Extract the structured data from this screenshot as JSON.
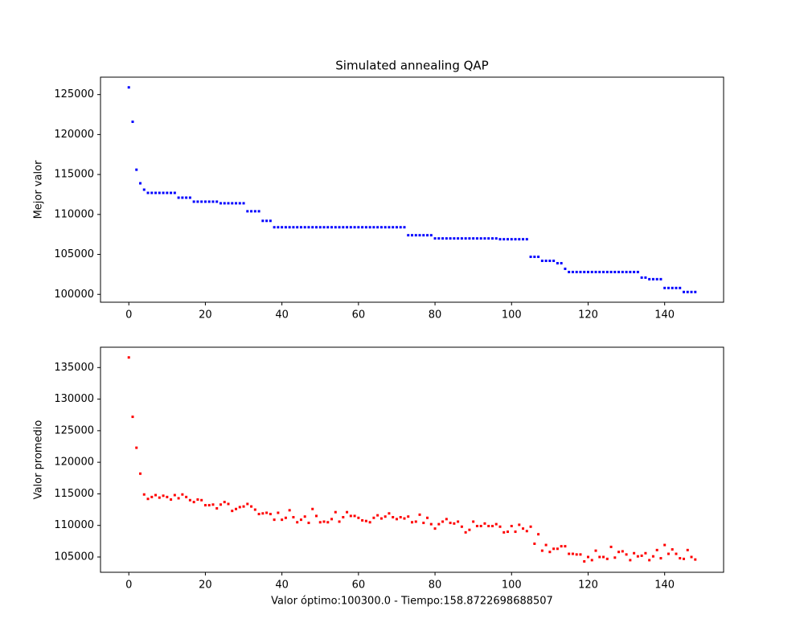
{
  "chart_data": [
    {
      "type": "scatter",
      "title": "Simulated annealing QAP",
      "ylabel": "Mejor valor",
      "color": "#0000ff",
      "x": [
        0,
        1,
        2,
        3,
        4,
        5,
        6,
        7,
        8,
        9,
        10,
        11,
        12,
        13,
        14,
        15,
        16,
        17,
        18,
        19,
        20,
        21,
        22,
        23,
        24,
        25,
        26,
        27,
        28,
        29,
        30,
        31,
        32,
        33,
        34,
        35,
        36,
        37,
        38,
        39,
        40,
        41,
        42,
        43,
        44,
        45,
        46,
        47,
        48,
        49,
        50,
        51,
        52,
        53,
        54,
        55,
        56,
        57,
        58,
        59,
        60,
        61,
        62,
        63,
        64,
        65,
        66,
        67,
        68,
        69,
        70,
        71,
        72,
        73,
        74,
        75,
        76,
        77,
        78,
        79,
        80,
        81,
        82,
        83,
        84,
        85,
        86,
        87,
        88,
        89,
        90,
        91,
        92,
        93,
        94,
        95,
        96,
        97,
        98,
        99,
        100,
        101,
        102,
        103,
        104,
        105,
        106,
        107,
        108,
        109,
        110,
        111,
        112,
        113,
        114,
        115,
        116,
        117,
        118,
        119,
        120,
        121,
        122,
        123,
        124,
        125,
        126,
        127,
        128,
        129,
        130,
        131,
        132,
        133,
        134,
        135,
        136,
        137,
        138,
        139,
        140,
        141,
        142,
        143,
        144,
        145,
        146,
        147,
        148
      ],
      "values": [
        125900,
        121600,
        115600,
        113900,
        113100,
        112700,
        112700,
        112700,
        112700,
        112700,
        112700,
        112700,
        112700,
        112100,
        112100,
        112100,
        112100,
        111600,
        111600,
        111600,
        111600,
        111600,
        111600,
        111600,
        111400,
        111400,
        111400,
        111400,
        111400,
        111400,
        111400,
        110400,
        110400,
        110400,
        110400,
        109200,
        109200,
        109200,
        108400,
        108400,
        108400,
        108400,
        108400,
        108400,
        108400,
        108400,
        108400,
        108400,
        108400,
        108400,
        108400,
        108400,
        108400,
        108400,
        108400,
        108400,
        108400,
        108400,
        108400,
        108400,
        108400,
        108400,
        108400,
        108400,
        108400,
        108400,
        108400,
        108400,
        108400,
        108400,
        108400,
        108400,
        108400,
        107400,
        107400,
        107400,
        107400,
        107400,
        107400,
        107400,
        107000,
        107000,
        107000,
        107000,
        107000,
        107000,
        107000,
        107000,
        107000,
        107000,
        107000,
        107000,
        107000,
        107000,
        107000,
        107000,
        107000,
        106900,
        106900,
        106900,
        106900,
        106900,
        106900,
        106900,
        106900,
        104700,
        104700,
        104700,
        104200,
        104200,
        104200,
        104200,
        103900,
        103900,
        103200,
        102800,
        102800,
        102800,
        102800,
        102800,
        102800,
        102800,
        102800,
        102800,
        102800,
        102800,
        102800,
        102800,
        102800,
        102800,
        102800,
        102800,
        102800,
        102800,
        102100,
        102100,
        101900,
        101900,
        101900,
        101900,
        100800,
        100800,
        100800,
        100800,
        100800,
        100300,
        100300,
        100300,
        100300
      ],
      "xlim": [
        -7.4,
        155.4
      ],
      "xticks": [
        0,
        20,
        40,
        60,
        80,
        100,
        120,
        140
      ],
      "ylim": [
        99020,
        127180
      ],
      "yticks": [
        100000,
        105000,
        110000,
        115000,
        120000,
        125000
      ]
    },
    {
      "type": "scatter",
      "ylabel": "Valor promedio",
      "xlabel": "Valor óptimo:100300.0 - Tiempo:158.8722698688507",
      "color": "#ff0000",
      "x": [
        0,
        1,
        2,
        3,
        4,
        5,
        6,
        7,
        8,
        9,
        10,
        11,
        12,
        13,
        14,
        15,
        16,
        17,
        18,
        19,
        20,
        21,
        22,
        23,
        24,
        25,
        26,
        27,
        28,
        29,
        30,
        31,
        32,
        33,
        34,
        35,
        36,
        37,
        38,
        39,
        40,
        41,
        42,
        43,
        44,
        45,
        46,
        47,
        48,
        49,
        50,
        51,
        52,
        53,
        54,
        55,
        56,
        57,
        58,
        59,
        60,
        61,
        62,
        63,
        64,
        65,
        66,
        67,
        68,
        69,
        70,
        71,
        72,
        73,
        74,
        75,
        76,
        77,
        78,
        79,
        80,
        81,
        82,
        83,
        84,
        85,
        86,
        87,
        88,
        89,
        90,
        91,
        92,
        93,
        94,
        95,
        96,
        97,
        98,
        99,
        100,
        101,
        102,
        103,
        104,
        105,
        106,
        107,
        108,
        109,
        110,
        111,
        112,
        113,
        114,
        115,
        116,
        117,
        118,
        119,
        120,
        121,
        122,
        123,
        124,
        125,
        126,
        127,
        128,
        129,
        130,
        131,
        132,
        133,
        134,
        135,
        136,
        137,
        138,
        139,
        140,
        141,
        142,
        143,
        144,
        145,
        146,
        147,
        148
      ],
      "values": [
        136600,
        127200,
        122300,
        118200,
        114900,
        114200,
        114500,
        114800,
        114400,
        114700,
        114500,
        114100,
        114800,
        114300,
        114900,
        114500,
        114000,
        113700,
        114100,
        114000,
        113200,
        113200,
        113300,
        112700,
        113300,
        113700,
        113400,
        112300,
        112600,
        112900,
        113000,
        113400,
        113000,
        112500,
        111800,
        111900,
        112000,
        111800,
        110900,
        112000,
        110900,
        111200,
        112400,
        111300,
        110500,
        110900,
        111400,
        110400,
        112600,
        111500,
        110500,
        110600,
        110500,
        111000,
        112100,
        110600,
        111300,
        112100,
        111500,
        111500,
        111200,
        110800,
        110700,
        110500,
        111200,
        111600,
        111100,
        111400,
        111900,
        111300,
        111000,
        111300,
        111100,
        111400,
        110500,
        110600,
        111700,
        110400,
        111200,
        110200,
        109500,
        110200,
        110600,
        111000,
        110400,
        110300,
        110600,
        109800,
        108900,
        109300,
        110600,
        109900,
        109900,
        110300,
        109900,
        109900,
        110200,
        109800,
        108900,
        109000,
        109900,
        109000,
        110100,
        109500,
        109100,
        109800,
        107100,
        108600,
        106000,
        106900,
        105800,
        106300,
        106300,
        106700,
        106700,
        105500,
        105500,
        105400,
        105400,
        104300,
        105000,
        104500,
        106000,
        105000,
        105000,
        104700,
        106600,
        104900,
        105800,
        105900,
        105400,
        104500,
        105600,
        105100,
        105200,
        105600,
        104500,
        105100,
        106100,
        104800,
        106900,
        105500,
        106200,
        105500,
        104800,
        104700,
        106100,
        105000,
        104600
      ],
      "xlim": [
        -7.4,
        155.4
      ],
      "xticks": [
        0,
        20,
        40,
        60,
        80,
        100,
        120,
        140
      ],
      "ylim": [
        102580,
        138220
      ],
      "yticks": [
        105000,
        110000,
        115000,
        120000,
        125000,
        130000,
        135000
      ]
    }
  ]
}
